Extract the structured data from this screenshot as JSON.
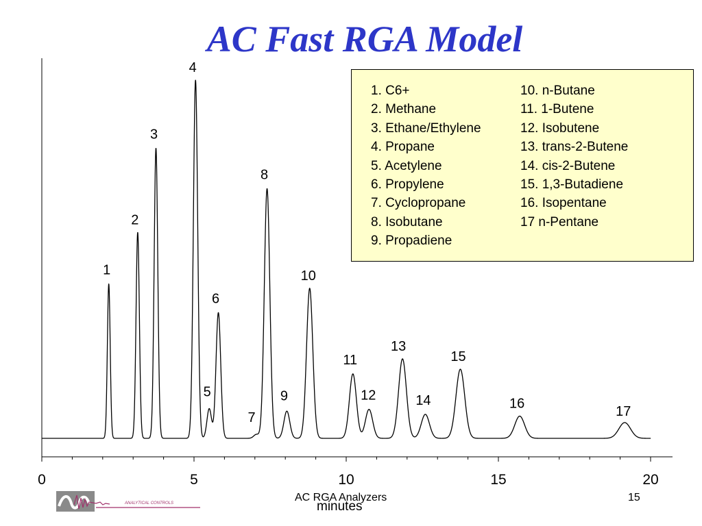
{
  "slide": {
    "title": "AC Fast RGA Model",
    "footer": "AC RGA Analyzers",
    "page_number": "15",
    "logo": {
      "text": "ANALYTICAL CONTROLS"
    }
  },
  "legend": {
    "left": [
      "1. C6+",
      "2. Methane",
      "3. Ethane/Ethylene",
      "4. Propane",
      "5. Acetylene",
      "6. Propylene",
      "7. Cyclopropane",
      "8. Isobutane",
      "9. Propadiene"
    ],
    "right": [
      "10. n-Butane",
      "11. 1-Butene",
      "12. Isobutene",
      "13. trans-2-Butene",
      "14. cis-2-Butene",
      "15. 1,3-Butadiene",
      "16. Isopentane",
      "17 n-Pentane"
    ]
  },
  "chart_data": {
    "type": "line",
    "title": "",
    "xlabel": "minutes",
    "ylabel": "",
    "xlim": [
      0,
      20
    ],
    "ylim": [
      0,
      100
    ],
    "x_ticks": [
      "0",
      "5",
      "10",
      "15",
      "20"
    ],
    "grid": false,
    "series": [
      {
        "peaks": [
          {
            "label": "1",
            "time": 2.2,
            "height": 43.1
          },
          {
            "label": "2",
            "time": 3.15,
            "height": 57.5
          },
          {
            "label": "3",
            "time": 3.75,
            "height": 81.0
          },
          {
            "label": "4",
            "time": 5.05,
            "height": 100.0
          },
          {
            "label": "5",
            "time": 5.5,
            "height": 8.3
          },
          {
            "label": "6",
            "time": 5.8,
            "height": 35.1
          },
          {
            "label": "7",
            "time": 7.05,
            "height": 1.1
          },
          {
            "label": "8",
            "time": 7.4,
            "height": 69.7
          },
          {
            "label": "9",
            "time": 8.05,
            "height": 7.6
          },
          {
            "label": "10",
            "time": 8.8,
            "height": 41.9
          },
          {
            "label": "11",
            "time": 10.22,
            "height": 18.0
          },
          {
            "label": "12",
            "time": 10.75,
            "height": 8.1
          },
          {
            "label": "13",
            "time": 11.85,
            "height": 22.2
          },
          {
            "label": "14",
            "time": 12.6,
            "height": 6.7
          },
          {
            "label": "15",
            "time": 13.75,
            "height": 19.3
          },
          {
            "label": "16",
            "time": 15.7,
            "height": 6.2
          },
          {
            "label": "17",
            "time": 19.15,
            "height": 4.4
          }
        ]
      }
    ]
  },
  "colors": {
    "title": "#2d36c8",
    "legend_background": "#ffffcc",
    "trace": "#000000",
    "logo": "#a0306a"
  }
}
